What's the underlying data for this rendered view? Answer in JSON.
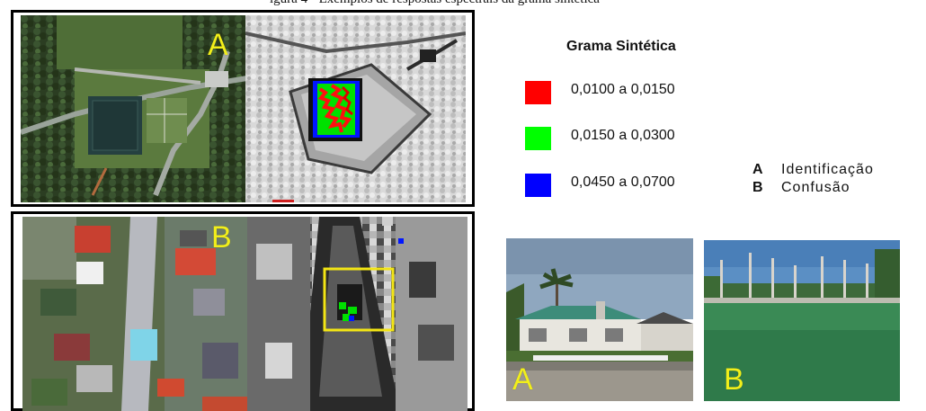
{
  "caption": "igura 4 - Exemplos de respostas espectrais da grama sintética",
  "panels": {
    "a_label": "A",
    "b_label": "B"
  },
  "legend": {
    "title": "Grama Sintética",
    "items": [
      {
        "label": "0,0100  a 0,0150",
        "color": "#ff0000"
      },
      {
        "label": "0,0150  a 0,0300",
        "color": "#00ff00"
      },
      {
        "label": "0,0450  a 0,0700",
        "color": "#0000ff"
      }
    ]
  },
  "key": [
    {
      "letter": "A",
      "text": "Identificação"
    },
    {
      "letter": "B",
      "text": "Confusão"
    }
  ],
  "photos": {
    "a_label": "A",
    "b_label": "B"
  },
  "colors": {
    "label_yellow": "#f2ef1a",
    "detection_box": "#f3e514",
    "frame": "#000000"
  }
}
